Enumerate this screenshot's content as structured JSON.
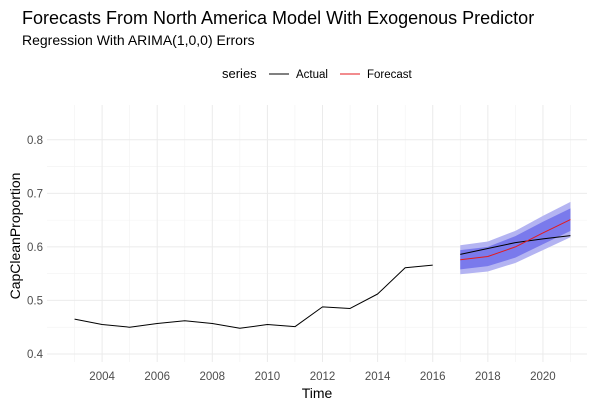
{
  "chart_data": {
    "type": "line",
    "title": "Forecasts From North America Model With Exogenous Predictor",
    "subtitle": "Regression With ARIMA(1,0,0) Errors",
    "xlabel": "Time",
    "ylabel": "CapCleanProportion",
    "xlim": [
      2002.0,
      2021.6
    ],
    "ylim": [
      0.385,
      0.865
    ],
    "xticks": [
      2004,
      2006,
      2008,
      2010,
      2012,
      2014,
      2016,
      2018,
      2020
    ],
    "xtick_labels": [
      "2004",
      "2006",
      "2008",
      "2010",
      "2012",
      "2014",
      "2016",
      "2018",
      "2020"
    ],
    "yticks": [
      0.4,
      0.5,
      0.6,
      0.7,
      0.8
    ],
    "ytick_labels": [
      "0.4",
      "0.5",
      "0.6",
      "0.7",
      "0.8"
    ],
    "grid": true,
    "legend": {
      "title": "series",
      "position": "top",
      "entries": [
        {
          "name": "Actual",
          "color": "#000000"
        },
        {
          "name": "Forecast",
          "color": "#e41a1c"
        }
      ]
    },
    "series": [
      {
        "name": "Actual",
        "color": "#000000",
        "x": [
          2003,
          2004,
          2005,
          2006,
          2007,
          2008,
          2009,
          2010,
          2011,
          2012,
          2013,
          2014,
          2015,
          2016
        ],
        "y": [
          0.465,
          0.455,
          0.45,
          0.457,
          0.462,
          0.457,
          0.448,
          0.455,
          0.451,
          0.488,
          0.485,
          0.512,
          0.561,
          0.566
        ]
      },
      {
        "name": "Actual",
        "color": "#000000",
        "x": [
          2017,
          2018,
          2019,
          2020,
          2021
        ],
        "y": [
          0.586,
          0.597,
          0.608,
          0.615,
          0.621
        ]
      },
      {
        "name": "Forecast",
        "color": "#e41a1c",
        "x": [
          2017,
          2018,
          2019,
          2020,
          2021
        ],
        "y": [
          0.576,
          0.582,
          0.6,
          0.626,
          0.651
        ]
      }
    ],
    "intervals": [
      {
        "level": 95,
        "color": "#b4b4f2",
        "x": [
          2017,
          2018,
          2019,
          2020,
          2021
        ],
        "lower": [
          0.549,
          0.554,
          0.57,
          0.594,
          0.618
        ],
        "upper": [
          0.603,
          0.61,
          0.63,
          0.658,
          0.684
        ]
      },
      {
        "level": 80,
        "color": "#7a7aec",
        "x": [
          2017,
          2018,
          2019,
          2020,
          2021
        ],
        "lower": [
          0.558,
          0.564,
          0.58,
          0.605,
          0.63
        ],
        "upper": [
          0.594,
          0.6,
          0.62,
          0.647,
          0.672
        ]
      }
    ]
  }
}
